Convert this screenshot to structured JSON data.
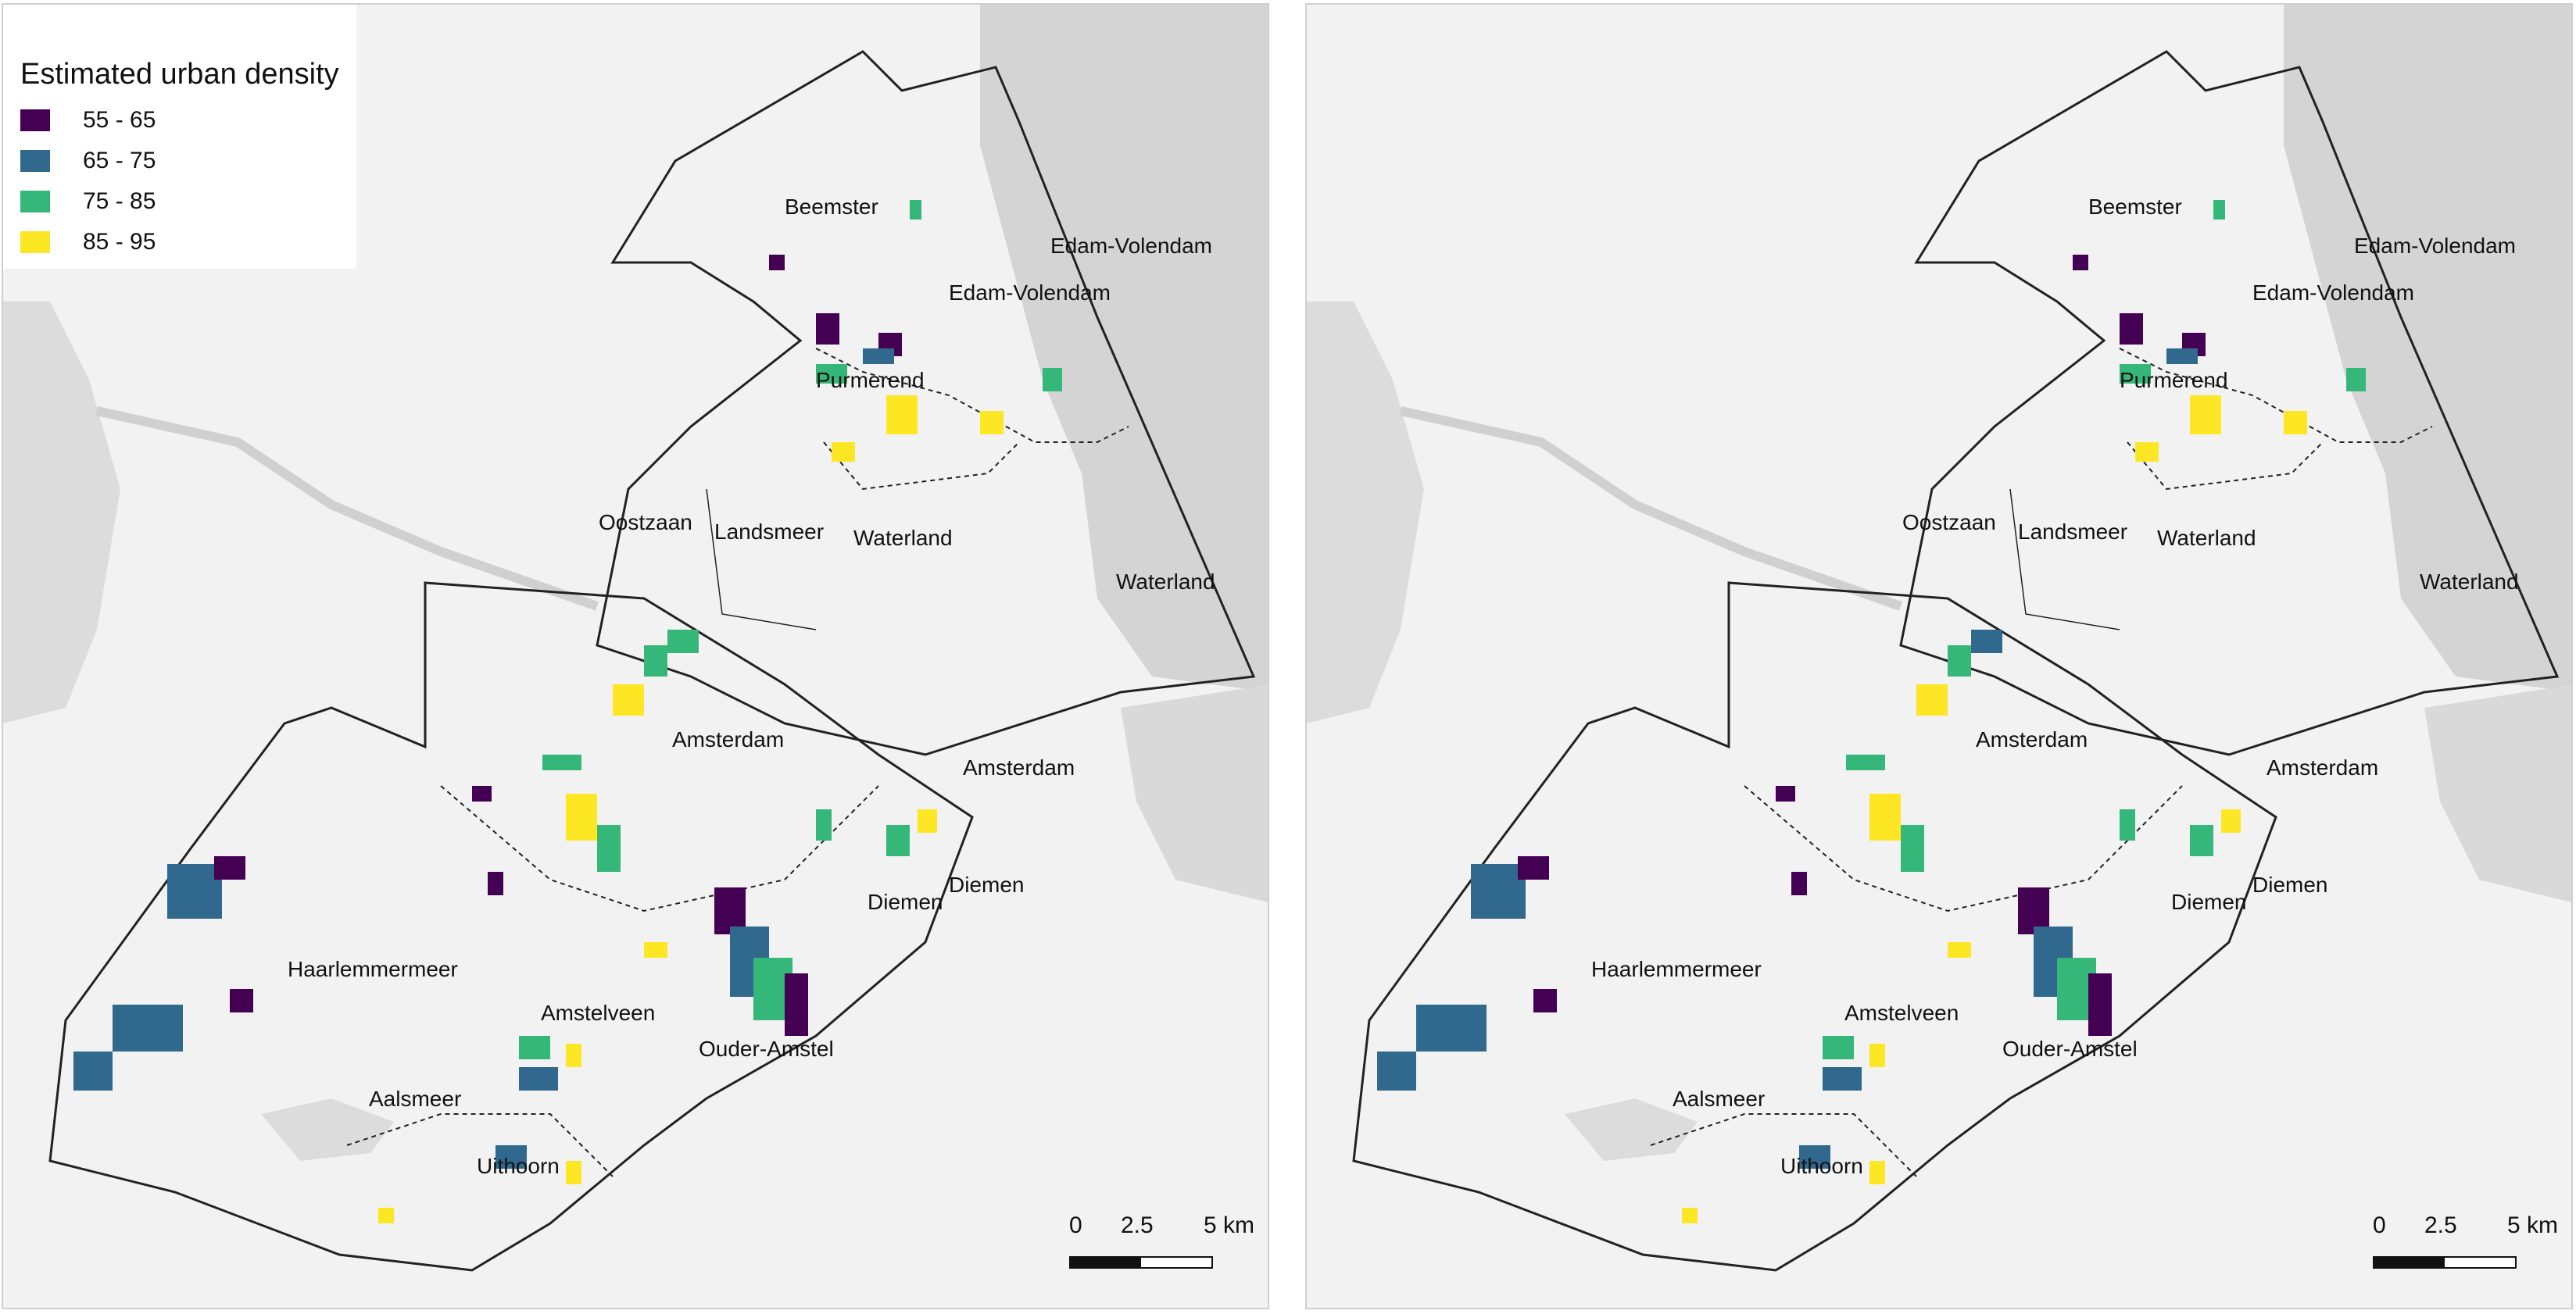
{
  "legend": {
    "title": "Estimated urban density",
    "items": [
      {
        "label": "55 - 65",
        "color": "#440154"
      },
      {
        "label": "65 - 75",
        "color": "#31688e"
      },
      {
        "label": "75 - 85",
        "color": "#35b779"
      },
      {
        "label": "85 - 95",
        "color": "#fde725"
      }
    ]
  },
  "places": [
    "Beemster",
    "Edam-Volendam",
    "Edam-Volendam",
    "Purmerend",
    "Oostzaan",
    "Landsmeer",
    "Waterland",
    "Waterland",
    "Amsterdam",
    "Amsterdam",
    "Diemen",
    "Diemen",
    "Haarlemmermeer",
    "Amstelveen",
    "Ouder-Amstel",
    "Aalsmeer",
    "Uithoorn"
  ],
  "scale": {
    "ticks": [
      "0",
      "2.5",
      "5 km"
    ]
  },
  "colors": {
    "water": "#d4d4d4",
    "land": "#f2f2f2",
    "boundary": "#222222"
  }
}
